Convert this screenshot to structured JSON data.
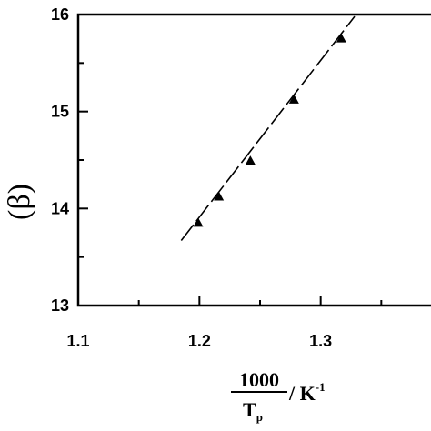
{
  "chart_data": {
    "type": "scatter",
    "xlim": [
      1.1,
      1.4
    ],
    "ylim": [
      13,
      16
    ],
    "xticks": [
      "1.1",
      "1.2",
      "1.3"
    ],
    "yticks": [
      "13",
      "14",
      "15",
      "16"
    ],
    "x_minor_ticks": [
      1.15,
      1.25,
      1.35
    ],
    "y_minor_ticks": [
      13.5,
      14.5,
      15.5
    ],
    "xlabel": {
      "numerator": "1000",
      "denominator": "T",
      "denominator_subscript": "p",
      "unit": "/ K",
      "unit_superscript": "-1"
    },
    "ylabel": "(β)",
    "grid": false,
    "series": [
      {
        "marker": "filled-triangle",
        "points": [
          {
            "x": 1.199,
            "y": 13.85
          },
          {
            "x": 1.216,
            "y": 14.12
          },
          {
            "x": 1.242,
            "y": 14.49
          },
          {
            "x": 1.278,
            "y": 15.12
          },
          {
            "x": 1.317,
            "y": 15.75
          }
        ]
      }
    ],
    "fit_line": {
      "style": "dashed",
      "points": [
        {
          "x": 1.185,
          "y": 13.67
        },
        {
          "x": 1.328,
          "y": 15.98
        }
      ]
    }
  }
}
